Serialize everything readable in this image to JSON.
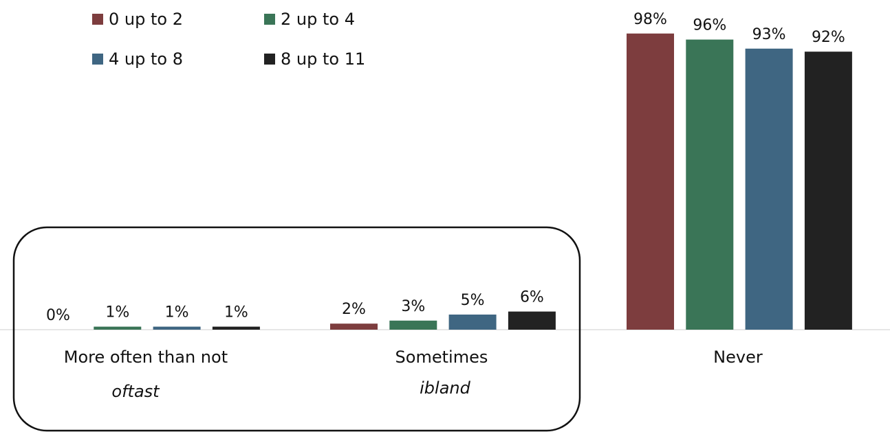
{
  "chart_data": {
    "type": "bar",
    "categories": [
      "More often than not",
      "Sometimes",
      "Never"
    ],
    "category_notes": [
      "oftast",
      "ibland",
      ""
    ],
    "series": [
      {
        "name": "0 up to 2",
        "color": "#7d3d3e",
        "values": [
          0,
          2,
          98
        ],
        "labels": [
          "0%",
          "2%",
          "98%"
        ]
      },
      {
        "name": "2 up to 4",
        "color": "#3a7557",
        "values": [
          1,
          3,
          96
        ],
        "labels": [
          "1%",
          "3%",
          "96%"
        ]
      },
      {
        "name": "4 up to 8",
        "color": "#3f6682",
        "values": [
          1,
          5,
          93
        ],
        "labels": [
          "1%",
          "5%",
          "93%"
        ]
      },
      {
        "name": "8 up to 11",
        "color": "#222222",
        "values": [
          1,
          6,
          92
        ],
        "labels": [
          "1%",
          "6%",
          "92%"
        ]
      }
    ],
    "unit": "%",
    "ylim": [
      0,
      100
    ],
    "legend_position": "top-left",
    "grid": false,
    "highlight_box": "around More often than not and Sometimes"
  }
}
